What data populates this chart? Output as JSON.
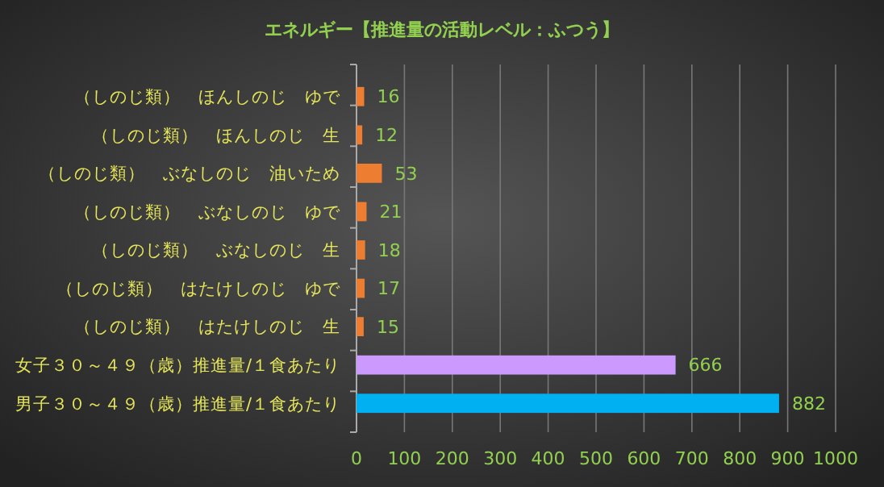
{
  "chart_data": {
    "type": "bar",
    "orientation": "horizontal",
    "title": "エネルギー【推進量の活動レベル：ふつう】",
    "categories": [
      "（しのじ類）　ほんしのじ　ゆで",
      "（しのじ類）　ほんしのじ　生",
      "（しのじ類）　ぶなしのじ　油いため",
      "（しのじ類）　ぶなしのじ　ゆで",
      "（しのじ類）　ぶなしのじ　生",
      "（しのじ類）　はたけしのじ　ゆで",
      "（しのじ類）　はたけしのじ　生",
      "女子３０～４９（歳）推進量/１食あたり",
      "男子３０～４９（歳）推進量/１食あたり"
    ],
    "values": [
      16,
      12,
      53,
      21,
      18,
      17,
      15,
      666,
      882
    ],
    "colors": [
      "#ed7d31",
      "#ed7d31",
      "#ed7d31",
      "#ed7d31",
      "#ed7d31",
      "#ed7d31",
      "#ed7d31",
      "#cc99ff",
      "#00b0f0"
    ],
    "xlim": [
      0,
      1000
    ],
    "xticks": [
      0,
      100,
      200,
      300,
      400,
      500,
      600,
      700,
      800,
      900,
      1000
    ],
    "grid": "x",
    "data_labels": true
  }
}
